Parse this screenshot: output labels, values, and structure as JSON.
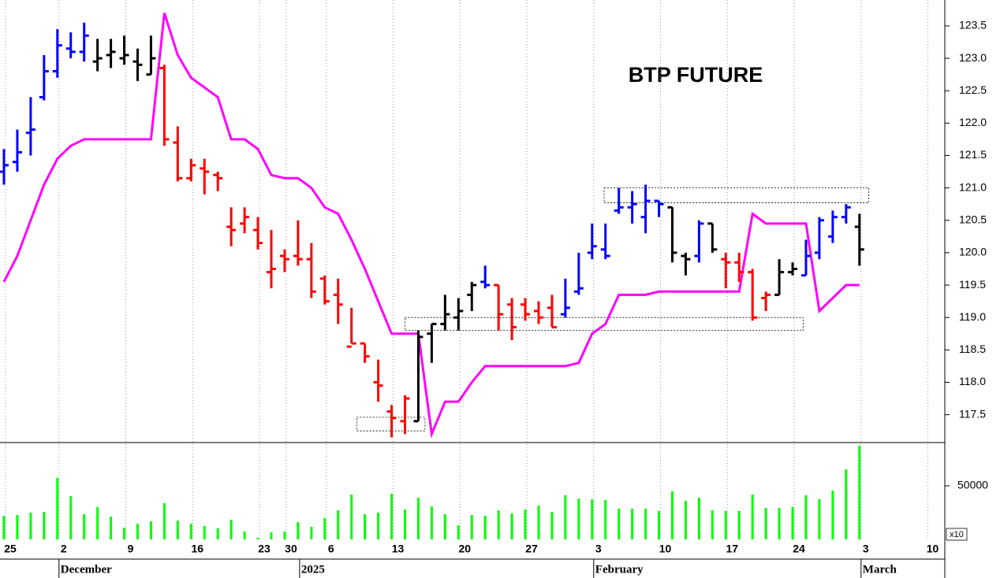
{
  "chart_data": [
    {
      "type": "ohlc",
      "title": "BTP FUTURE",
      "open": [
        121.25,
        121.4,
        121.85,
        122.4,
        122.8,
        123.15,
        123.1,
        122.95,
        123.05,
        123.0,
        122.95,
        122.75,
        122.85,
        121.7,
        121.15,
        121.3,
        121.2,
        120.4,
        120.45,
        120.35,
        119.7,
        119.95,
        119.95,
        119.9,
        119.6,
        119.35,
        118.55,
        118.6,
        118.0,
        117.55,
        117.4,
        117.4,
        118.75,
        118.9,
        119.0,
        119.35,
        119.55,
        119.5,
        119.2,
        119.2,
        119.1,
        119.15,
        119.05,
        119.4,
        120.0,
        120.05,
        120.65,
        120.7,
        120.55,
        120.8,
        120.7,
        119.95,
        119.95,
        120.45,
        119.9,
        119.85,
        119.7,
        119.3,
        119.35,
        119.7,
        119.65,
        120.0,
        120.25,
        120.55,
        120.4
      ],
      "high": [
        121.6,
        121.9,
        122.4,
        123.05,
        123.45,
        123.4,
        123.55,
        123.3,
        123.3,
        123.35,
        123.15,
        123.35,
        122.9,
        121.95,
        121.45,
        121.45,
        121.25,
        120.7,
        120.7,
        120.55,
        120.35,
        120.05,
        120.5,
        120.15,
        119.65,
        119.6,
        119.15,
        118.6,
        118.35,
        117.65,
        117.8,
        118.8,
        118.9,
        119.35,
        119.3,
        119.55,
        119.8,
        119.5,
        119.3,
        119.3,
        119.25,
        119.35,
        119.6,
        120.0,
        120.45,
        120.45,
        121.0,
        120.95,
        121.05,
        120.8,
        120.7,
        120.0,
        120.5,
        120.45,
        120.0,
        120.0,
        119.75,
        119.4,
        119.9,
        119.85,
        120.2,
        120.55,
        120.65,
        120.75,
        120.6
      ],
      "low": [
        121.05,
        121.25,
        121.5,
        122.35,
        122.7,
        123.0,
        122.95,
        122.8,
        122.85,
        122.9,
        122.65,
        122.75,
        121.65,
        121.1,
        121.1,
        120.9,
        120.95,
        120.1,
        120.3,
        120.05,
        119.45,
        119.7,
        119.8,
        119.3,
        119.2,
        118.9,
        118.6,
        118.3,
        117.7,
        117.15,
        117.2,
        117.4,
        118.3,
        118.8,
        118.8,
        119.1,
        119.45,
        118.8,
        118.65,
        118.95,
        118.9,
        118.85,
        119.0,
        119.35,
        119.9,
        119.9,
        120.6,
        120.45,
        120.3,
        120.55,
        119.85,
        119.65,
        119.85,
        120.0,
        119.45,
        119.55,
        118.95,
        119.1,
        119.35,
        119.65,
        119.65,
        119.9,
        120.15,
        120.45,
        119.8
      ],
      "close": [
        121.35,
        121.55,
        121.9,
        122.8,
        123.2,
        123.1,
        123.35,
        123.0,
        123.1,
        123.05,
        122.9,
        123.0,
        121.75,
        121.15,
        121.35,
        121.25,
        121.15,
        120.35,
        120.55,
        120.15,
        119.75,
        119.9,
        119.9,
        119.4,
        119.25,
        119.2,
        118.6,
        118.4,
        117.95,
        117.45,
        117.75,
        118.7,
        118.9,
        119.05,
        119.1,
        119.5,
        119.5,
        119.05,
        118.85,
        119.05,
        119.0,
        118.85,
        119.15,
        119.45,
        120.1,
        119.95,
        120.7,
        120.75,
        120.8,
        120.75,
        120.0,
        119.9,
        120.45,
        120.05,
        119.85,
        119.7,
        119.0,
        119.35,
        119.7,
        119.75,
        119.95,
        120.5,
        120.55,
        120.7,
        120.05
      ],
      "bar_colors": [
        "#0000ff",
        "#0000ff",
        "#0000ff",
        "#0000ff",
        "#0000ff",
        "#0000ff",
        "#0000ff",
        "#000000",
        "#000000",
        "#000000",
        "#000000",
        "#000000",
        "#ff0000",
        "#ff0000",
        "#ff0000",
        "#ff0000",
        "#ff0000",
        "#ff0000",
        "#ff0000",
        "#ff0000",
        "#ff0000",
        "#ff0000",
        "#ff0000",
        "#ff0000",
        "#ff0000",
        "#ff0000",
        "#ff0000",
        "#ff0000",
        "#ff0000",
        "#ff0000",
        "#ff0000",
        "#000000",
        "#000000",
        "#000000",
        "#000000",
        "#000000",
        "#0000ff",
        "#ff0000",
        "#ff0000",
        "#ff0000",
        "#ff0000",
        "#ff0000",
        "#0000ff",
        "#0000ff",
        "#0000ff",
        "#0000ff",
        "#0000ff",
        "#0000ff",
        "#0000ff",
        "#0000ff",
        "#000000",
        "#000000",
        "#0000ff",
        "#000000",
        "#ff0000",
        "#ff0000",
        "#ff0000",
        "#ff0000",
        "#000000",
        "#000000",
        "#0000ff",
        "#0000ff",
        "#0000ff",
        "#0000ff",
        "#000000"
      ],
      "line": {
        "color": "#ff00ff",
        "values": [
          119.55,
          119.95,
          120.5,
          121.05,
          121.45,
          121.65,
          121.75,
          121.75,
          121.75,
          121.75,
          121.75,
          121.75,
          123.7,
          123.05,
          122.7,
          122.55,
          122.4,
          121.75,
          121.75,
          121.6,
          121.2,
          121.15,
          121.15,
          121.0,
          120.7,
          120.6,
          120.2,
          119.75,
          119.25,
          118.75,
          118.75,
          118.75,
          117.2,
          117.7,
          117.7,
          118.0,
          118.25,
          118.25,
          118.25,
          118.25,
          118.25,
          118.25,
          118.25,
          118.3,
          118.75,
          118.9,
          119.35,
          119.35,
          119.35,
          119.4,
          119.4,
          119.4,
          119.4,
          119.4,
          119.4,
          119.4,
          120.6,
          120.45,
          120.45,
          120.45,
          120.45,
          119.1,
          119.3,
          119.5,
          119.5
        ]
      },
      "boxes": [
        {
          "x": [
            26.4,
            31.5
          ],
          "y": [
            117.25,
            117.46
          ]
        },
        {
          "x": [
            30,
            59.8
          ],
          "y": [
            118.8,
            119.0
          ]
        },
        {
          "x": [
            44.9,
            64.7
          ],
          "y": [
            120.77,
            121.0
          ]
        }
      ],
      "ylim": [
        117.07,
        123.9
      ],
      "yticks": [
        {
          "value": 117.5,
          "label": "117.5"
        },
        {
          "value": 118,
          "label": "118.0"
        },
        {
          "value": 118.5,
          "label": "118.5"
        },
        {
          "value": 119,
          "label": "119.0"
        },
        {
          "value": 119.5,
          "label": "119.5"
        },
        {
          "value": 120,
          "label": "120.0"
        },
        {
          "value": 120.5,
          "label": "120.5"
        },
        {
          "value": 121,
          "label": "121.0"
        },
        {
          "value": 121.5,
          "label": "121.5"
        },
        {
          "value": 122,
          "label": "122.0"
        },
        {
          "value": 122.5,
          "label": "122.5"
        },
        {
          "value": 123,
          "label": "123.0"
        },
        {
          "value": 123.5,
          "label": "123.5"
        }
      ]
    },
    {
      "type": "bar",
      "color": "#00ff00",
      "values": [
        22000,
        22800,
        25000,
        25700,
        57400,
        40400,
        23500,
        30100,
        21300,
        11000,
        14700,
        16900,
        33800,
        17600,
        14700,
        12500,
        10300,
        18400,
        7400,
        1500,
        6600,
        7400,
        16200,
        11800,
        19900,
        27200,
        41900,
        23500,
        25000,
        42600,
        27900,
        39000,
        30900,
        23500,
        13200,
        22800,
        22100,
        27200,
        24300,
        27900,
        31600,
        25700,
        41200,
        38200,
        37500,
        36800,
        28700,
        28700,
        28700,
        26500,
        44900,
        36000,
        39000,
        27200,
        26500,
        26500,
        41900,
        29400,
        29400,
        30100,
        41200,
        37500,
        45600,
        65400,
        87500
      ],
      "ylim": [
        0,
        90400
      ],
      "yticks": [
        50000
      ],
      "scale_label": "x10",
      "xticks": [
        {
          "value": 0,
          "label": "25"
        },
        {
          "value": 4,
          "label": "2"
        },
        {
          "value": 9,
          "label": "9"
        },
        {
          "value": 14,
          "label": "16"
        },
        {
          "value": 19,
          "label": "23"
        },
        {
          "value": 21,
          "label": "30"
        },
        {
          "value": 24,
          "label": "6"
        },
        {
          "value": 29,
          "label": "13"
        },
        {
          "value": 34,
          "label": "20"
        },
        {
          "value": 39,
          "label": "27"
        },
        {
          "value": 44,
          "label": "3"
        },
        {
          "value": 49,
          "label": "10"
        },
        {
          "value": 54,
          "label": "17"
        },
        {
          "value": 59,
          "label": "24"
        },
        {
          "value": 64,
          "label": "3"
        },
        {
          "value": 69,
          "label": "10"
        }
      ],
      "month_ticks": [
        {
          "value": 4,
          "label": "December"
        },
        {
          "value": 22,
          "label": "2025"
        },
        {
          "value": 44,
          "label": "February"
        },
        {
          "value": 64,
          "label": "March"
        }
      ]
    }
  ]
}
